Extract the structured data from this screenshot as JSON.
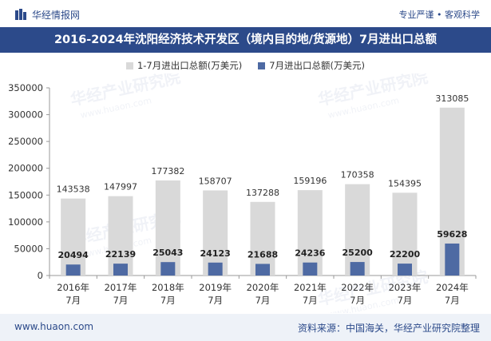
{
  "header": {
    "brand": "华经情报网",
    "tagline": "专业严谨 • 客观科学"
  },
  "title": "2016-2024年沈阳经济技术开发区（境内目的地/货源地）7月进出口总额",
  "footer": {
    "website": "www.huaon.com",
    "source": "资料来源：中国海关，华经产业研究院整理"
  },
  "watermark": {
    "text": "华经产业研究院",
    "url": "www.huaon.com"
  },
  "colors": {
    "brand": "#2c4a8a",
    "series_total": "#d9d9d9",
    "series_july": "#4e6aa3"
  },
  "chart_data": {
    "type": "bar",
    "title": "2016-2024年沈阳经济技术开发区（境内目的地/货源地）7月进出口总额",
    "categories": [
      "2016年\n7月",
      "2017年\n7月",
      "2018年\n7月",
      "2019年\n7月",
      "2020年\n7月",
      "2021年\n7月",
      "2022年\n7月",
      "2023年\n7月",
      "2024年\n7月"
    ],
    "series": [
      {
        "name": "1-7月进出口总额(万美元)",
        "values": [
          143538,
          147997,
          177382,
          158707,
          137288,
          159196,
          170358,
          154395,
          313085
        ]
      },
      {
        "name": "7月进出口总额(万美元)",
        "values": [
          20494,
          22139,
          25043,
          24123,
          21688,
          24236,
          25200,
          22200,
          59628
        ]
      }
    ],
    "xlabel": "",
    "ylabel": "",
    "ylim": [
      0,
      350000
    ],
    "yticks": [
      0,
      50000,
      100000,
      150000,
      200000,
      250000,
      300000,
      350000
    ],
    "legend_position": "top-center",
    "grid": false
  }
}
